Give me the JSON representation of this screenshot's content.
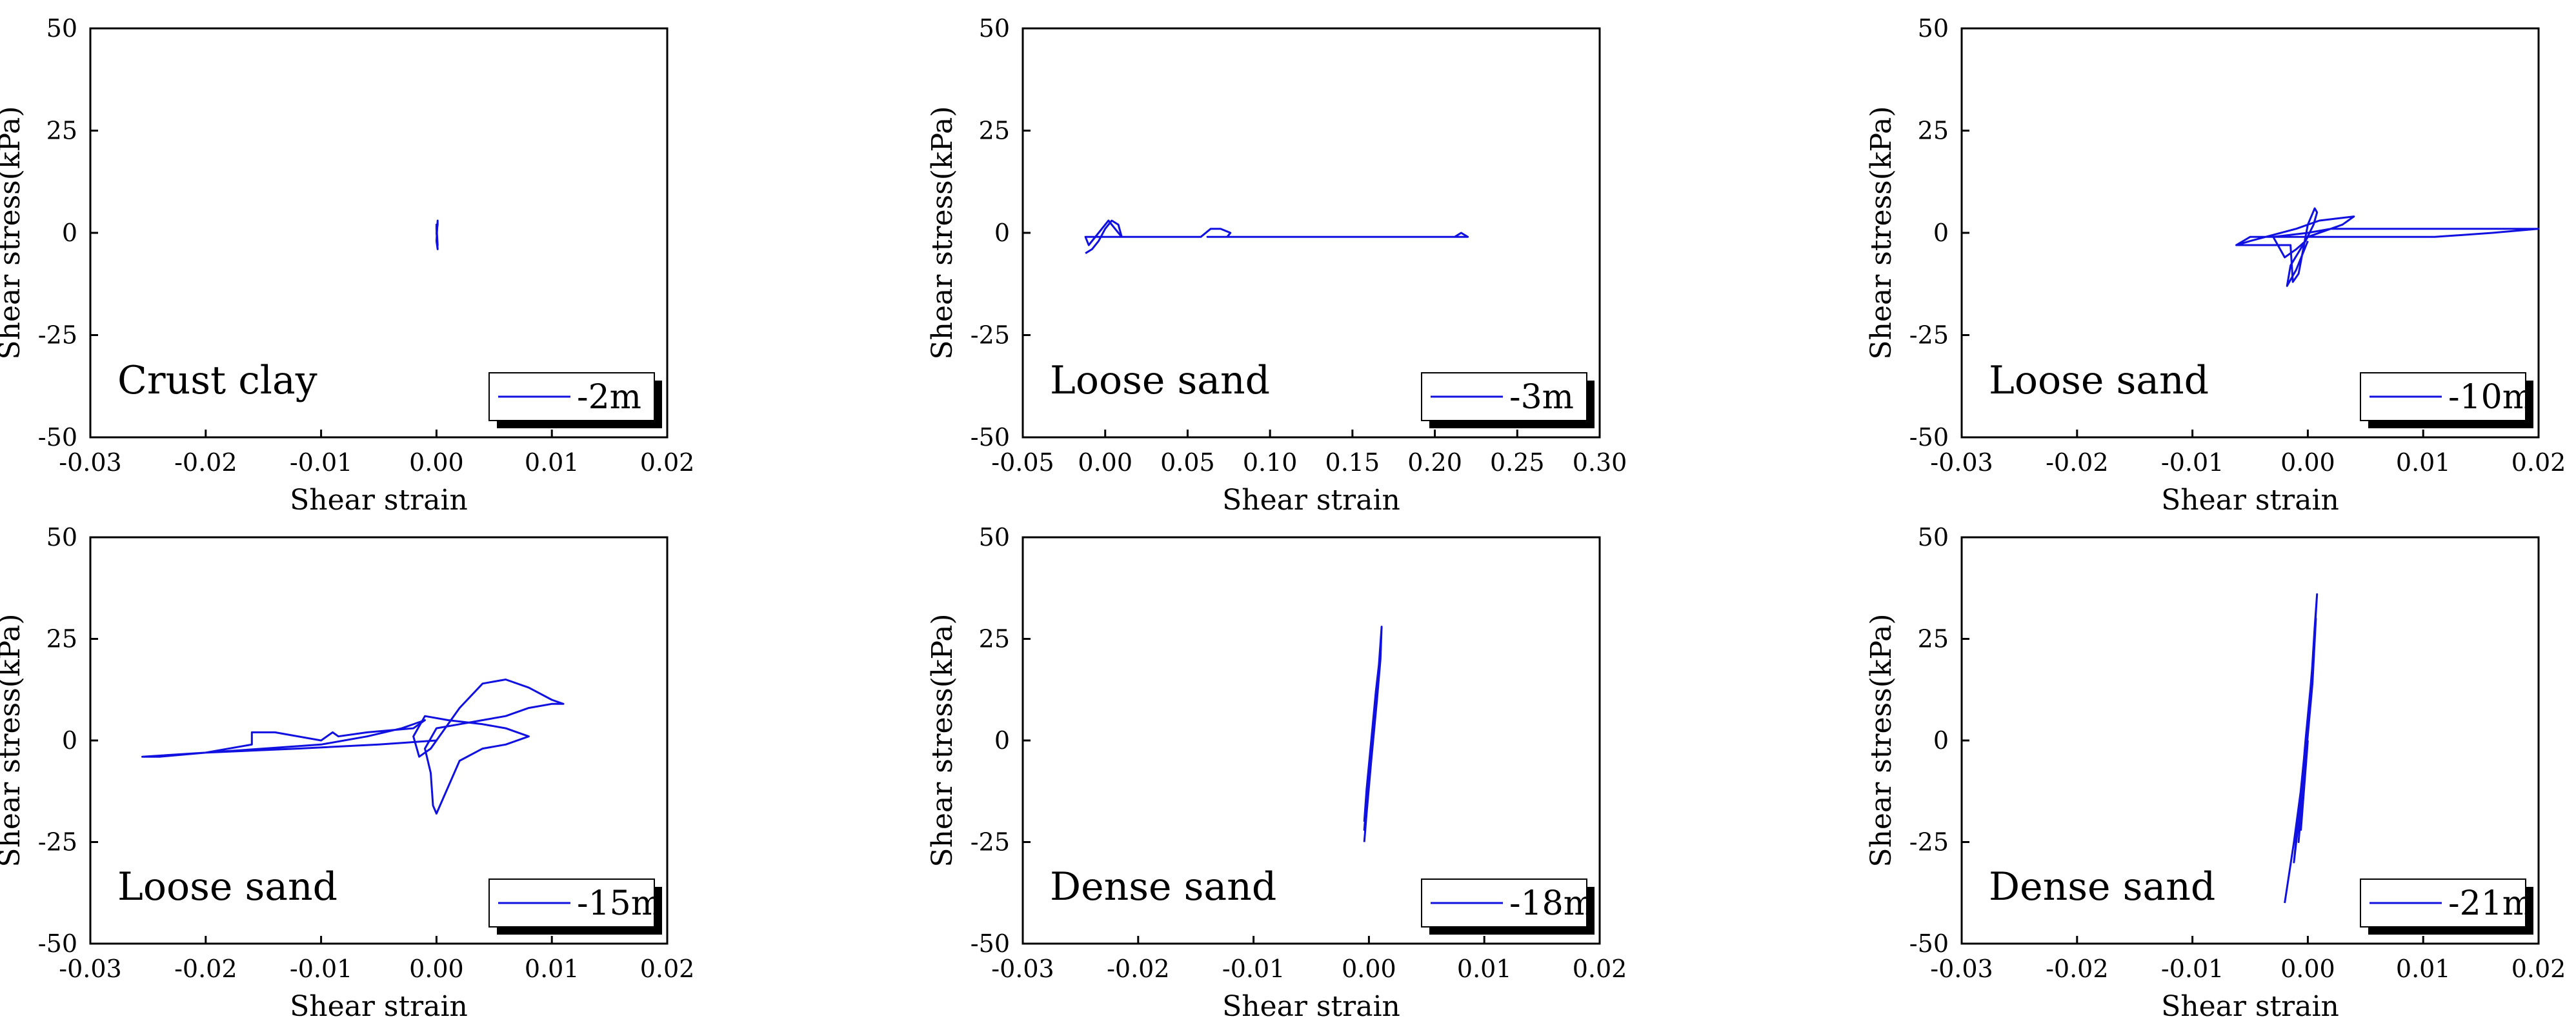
{
  "figure": {
    "rows": 2,
    "cols": 3
  },
  "chart_data": [
    {
      "type": "line",
      "xlabel": "Shear strain",
      "ylabel": "Shear stress(kPa)",
      "xlim": [
        -0.03,
        0.02
      ],
      "ylim": [
        -50,
        50
      ],
      "xticks": [
        "-0.03",
        "-0.02",
        "-0.01",
        "0.00",
        "0.01",
        "0.02"
      ],
      "yticks": [
        "-50",
        "-25",
        "0",
        "25",
        "50"
      ],
      "annotation": "Crust clay",
      "legend": {
        "position": "bottom-right"
      },
      "series": [
        {
          "name": "-2m",
          "color": "#1010e0",
          "x": [
            0.0,
            0.0001,
            0.0001,
            0.0,
            0.0001,
            0.0,
            0.0,
            0.0001,
            0.0
          ],
          "y": [
            0,
            2,
            3,
            -2,
            -4,
            1,
            2,
            -3,
            0
          ]
        }
      ]
    },
    {
      "type": "line",
      "xlabel": "Shear strain",
      "ylabel": "Shear stress(kPa)",
      "xlim": [
        -0.05,
        0.3
      ],
      "ylim": [
        -50,
        50
      ],
      "xticks": [
        "-0.05",
        "0.00",
        "0.05",
        "0.10",
        "0.15",
        "0.20",
        "0.25",
        "0.30"
      ],
      "yticks": [
        "-50",
        "-25",
        "0",
        "25",
        "50"
      ],
      "annotation": "Loose sand",
      "legend": {
        "position": "bottom-right"
      },
      "series": [
        {
          "name": "-3m",
          "color": "#1010e0",
          "x": [
            -0.012,
            -0.008,
            -0.004,
            0.0,
            0.004,
            0.008,
            0.01,
            0.006,
            0.002,
            -0.004,
            -0.01,
            -0.012,
            0.01,
            0.03,
            0.058,
            0.064,
            0.07,
            0.076,
            0.074,
            0.062,
            0.09,
            0.15,
            0.212,
            0.216,
            0.22,
            0.218,
            0.21,
            0.215
          ],
          "y": [
            -5,
            -4,
            -2,
            1,
            3,
            2,
            -1,
            1,
            3,
            0,
            -3,
            -1,
            -1,
            -1,
            -1,
            1,
            1,
            0,
            -1,
            -1,
            -1,
            -1,
            -1,
            0,
            -1,
            -1,
            -1,
            -1
          ]
        }
      ]
    },
    {
      "type": "line",
      "xlabel": "Shear strain",
      "ylabel": "Shear stress(kPa)",
      "xlim": [
        -0.03,
        0.02
      ],
      "ylim": [
        -50,
        50
      ],
      "xticks": [
        "-0.03",
        "-0.02",
        "-0.01",
        "0.00",
        "0.01",
        "0.02"
      ],
      "yticks": [
        "-50",
        "-25",
        "0",
        "25",
        "50"
      ],
      "annotation": "Loose sand",
      "legend": {
        "position": "bottom-right"
      },
      "series": [
        {
          "name": "-10m",
          "color": "#1010e0",
          "x": [
            -0.0062,
            -0.004,
            -0.0015,
            -0.0013,
            -0.0008,
            0.0,
            0.0006,
            0.0008,
            0.0005,
            -0.0002,
            -0.001,
            -0.002,
            -0.003,
            0.0,
            0.002,
            0.004,
            0.006,
            0.01,
            0.015,
            0.02,
            0.016,
            0.011,
            0.006,
            0.002,
            -0.002,
            -0.005,
            -0.0062,
            -0.005,
            -0.001,
            0.001,
            0.004,
            0.003,
            0.0,
            -0.0015,
            -0.0018,
            -0.001,
            0.0
          ],
          "y": [
            -3,
            -3,
            -3,
            -12,
            -10,
            2,
            6,
            5,
            2,
            -2,
            -4,
            -6,
            -1,
            0,
            1,
            1,
            1,
            1,
            1,
            1,
            0,
            -1,
            -1,
            -1,
            -1,
            -1,
            -3,
            -2,
            1,
            3,
            4,
            2,
            -1,
            -8,
            -13,
            -9,
            -2
          ]
        }
      ]
    },
    {
      "type": "line",
      "xlabel": "Shear strain",
      "ylabel": "Shear stress(kPa)",
      "xlim": [
        -0.03,
        0.02
      ],
      "ylim": [
        -50,
        50
      ],
      "xticks": [
        "-0.03",
        "-0.02",
        "-0.01",
        "0.00",
        "0.01",
        "0.02"
      ],
      "yticks": [
        "-50",
        "-25",
        "0",
        "25",
        "50"
      ],
      "annotation": "Loose sand",
      "legend": {
        "position": "bottom-right"
      },
      "series": [
        {
          "name": "-15m",
          "color": "#1010e0",
          "x": [
            -0.0255,
            -0.02,
            -0.016,
            -0.016,
            -0.014,
            -0.01,
            -0.009,
            -0.0085,
            -0.006,
            -0.002,
            -0.001,
            -0.003,
            -0.006,
            -0.01,
            -0.015,
            -0.02,
            -0.024,
            -0.0255,
            -0.02,
            -0.012,
            -0.005,
            0.0,
            0.002,
            0.004,
            0.006,
            0.008,
            0.01,
            0.011,
            0.01,
            0.008,
            0.006,
            0.004,
            0.002,
            0.0,
            -0.001,
            -0.0005,
            -0.0003,
            0.0,
            0.002,
            0.004,
            0.006,
            0.008,
            0.006,
            0.004,
            0.001,
            -0.001,
            -0.002,
            -0.0015,
            -0.0005,
            0.0
          ],
          "y": [
            -4,
            -3,
            -1,
            2,
            2,
            0,
            2,
            1,
            2,
            3,
            5,
            3,
            1,
            -1,
            -2,
            -3,
            -4,
            -4,
            -3,
            -2,
            -1,
            0,
            8,
            14,
            15,
            13,
            10,
            9,
            9,
            8,
            6,
            5,
            4,
            3,
            -2,
            -8,
            -16,
            -18,
            -5,
            -2,
            -1,
            1,
            3,
            4,
            5,
            6,
            1,
            -4,
            -2,
            0
          ]
        }
      ]
    },
    {
      "type": "line",
      "xlabel": "Shear strain",
      "ylabel": "Shear stress(kPa)",
      "xlim": [
        -0.03,
        0.02
      ],
      "ylim": [
        -50,
        50
      ],
      "xticks": [
        "-0.03",
        "-0.02",
        "-0.01",
        "0.00",
        "0.01",
        "0.02"
      ],
      "yticks": [
        "-50",
        "-25",
        "0",
        "25",
        "50"
      ],
      "annotation": "Dense sand",
      "legend": {
        "position": "bottom-right"
      },
      "series": [
        {
          "name": "-18m",
          "color": "#1010e0",
          "x": [
            -0.0004,
            -0.0002,
            0.0002,
            0.0006,
            0.0009,
            0.0011,
            0.001,
            0.0007,
            0.0003,
            -0.0001,
            -0.0004,
            -0.0002,
            0.0,
            0.0004,
            0.0008,
            0.001,
            0.0006,
            0.0002,
            -0.0002,
            -0.0004
          ],
          "y": [
            -25,
            -18,
            -5,
            8,
            20,
            28,
            20,
            10,
            -2,
            -14,
            -22,
            -15,
            -8,
            4,
            15,
            22,
            12,
            0,
            -12,
            -20
          ]
        }
      ]
    },
    {
      "type": "line",
      "xlabel": "Shear strain",
      "ylabel": "Shear stress(kPa)",
      "xlim": [
        -0.03,
        0.02
      ],
      "ylim": [
        -50,
        50
      ],
      "xticks": [
        "-0.03",
        "-0.02",
        "-0.01",
        "0.00",
        "0.01",
        "0.02"
      ],
      "yticks": [
        "-50",
        "-25",
        "0",
        "25",
        "50"
      ],
      "annotation": "Dense sand",
      "legend": {
        "position": "bottom-right"
      },
      "series": [
        {
          "name": "-21m",
          "color": "#1010e0",
          "x": [
            -0.002,
            -0.0012,
            -0.0004,
            0.0002,
            0.0006,
            0.0008,
            0.0005,
            0.0,
            -0.0006,
            -0.0012,
            -0.0008,
            -0.0002,
            0.0004,
            0.0007,
            0.0004,
            -0.0002,
            -0.0008,
            -0.0004,
            0.0002,
            0.0006,
            0.0003,
            -0.0003,
            -0.0006,
            0.0
          ],
          "y": [
            -40,
            -25,
            -8,
            10,
            28,
            36,
            22,
            5,
            -12,
            -30,
            -20,
            0,
            18,
            30,
            14,
            -5,
            -25,
            -10,
            8,
            26,
            12,
            -8,
            -22,
            0
          ]
        }
      ]
    }
  ]
}
